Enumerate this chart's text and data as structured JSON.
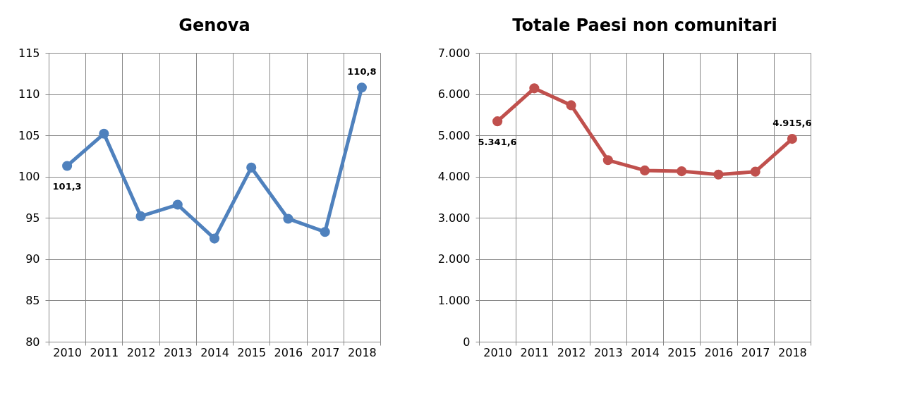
{
  "chart_data": [
    {
      "type": "line",
      "title": "Genova",
      "categories": [
        "2010",
        "2011",
        "2012",
        "2013",
        "2014",
        "2015",
        "2016",
        "2017",
        "2018"
      ],
      "series": [
        {
          "color": "#4f81bd",
          "values": [
            101.3,
            105.2,
            95.2,
            96.6,
            92.5,
            101.1,
            94.9,
            93.3,
            110.8
          ],
          "value_labels": [
            "101,3",
            null,
            null,
            null,
            null,
            null,
            null,
            null,
            "110,8"
          ]
        }
      ],
      "ylim": [
        80,
        115
      ],
      "yticks": [
        80,
        85,
        90,
        95,
        100,
        105,
        110,
        115
      ],
      "grid": true,
      "marker": "circle"
    },
    {
      "type": "line",
      "title": "Totale Paesi non comunitari",
      "categories": [
        "2010",
        "2011",
        "2012",
        "2013",
        "2014",
        "2015",
        "2016",
        "2017",
        "2018"
      ],
      "series": [
        {
          "color": "#c0504d",
          "values": [
            5341.6,
            6140,
            5730,
            4400,
            4150,
            4130,
            4050,
            4120,
            4915.6
          ],
          "value_labels": [
            "5.341,6",
            null,
            null,
            null,
            null,
            null,
            null,
            null,
            "4.915,6"
          ]
        }
      ],
      "ylim": [
        0,
        7000
      ],
      "yticks": [
        0,
        {
          "value": 1000,
          "label": "1.000"
        },
        {
          "value": 2000,
          "label": "2.000"
        },
        {
          "value": 3000,
          "label": "3.000"
        },
        {
          "value": 4000,
          "label": "4.000"
        },
        {
          "value": 5000,
          "label": "5.000"
        },
        {
          "value": 6000,
          "label": "6.000"
        },
        {
          "value": 7000,
          "label": "7.000"
        }
      ],
      "grid": true,
      "marker": "circle"
    }
  ]
}
